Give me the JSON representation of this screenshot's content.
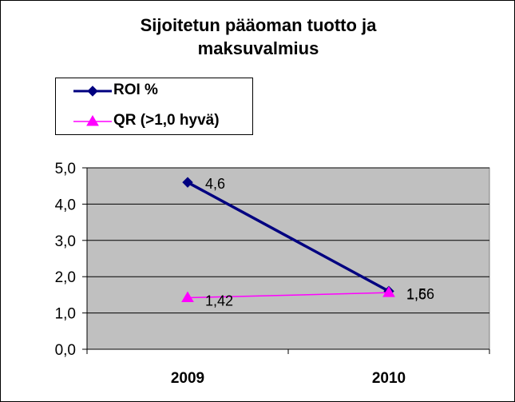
{
  "chart_data": {
    "type": "line",
    "title": "Sijoitetun pääoman tuotto ja maksuvalmius",
    "title_lines": [
      "Sijoitetun pääoman tuotto ja",
      "maksuvalmius"
    ],
    "categories": [
      "2009",
      "2010"
    ],
    "ylim": [
      0,
      5
    ],
    "yticks": [
      "0,0",
      "1,0",
      "2,0",
      "3,0",
      "4,0",
      "5,0"
    ],
    "grid": true,
    "legend_position": "top-left",
    "plot_background": "#c0c0c0",
    "series": [
      {
        "name": "ROI %",
        "values": [
          4.6,
          1.6
        ],
        "labels": [
          "4,6",
          "1,6"
        ],
        "color": "#000080",
        "marker": "diamond"
      },
      {
        "name": "QR (>1,0 hyvä)",
        "values": [
          1.42,
          1.56
        ],
        "labels": [
          "1,42",
          "1,56"
        ],
        "color": "#ff00ff",
        "marker": "triangle"
      }
    ]
  }
}
